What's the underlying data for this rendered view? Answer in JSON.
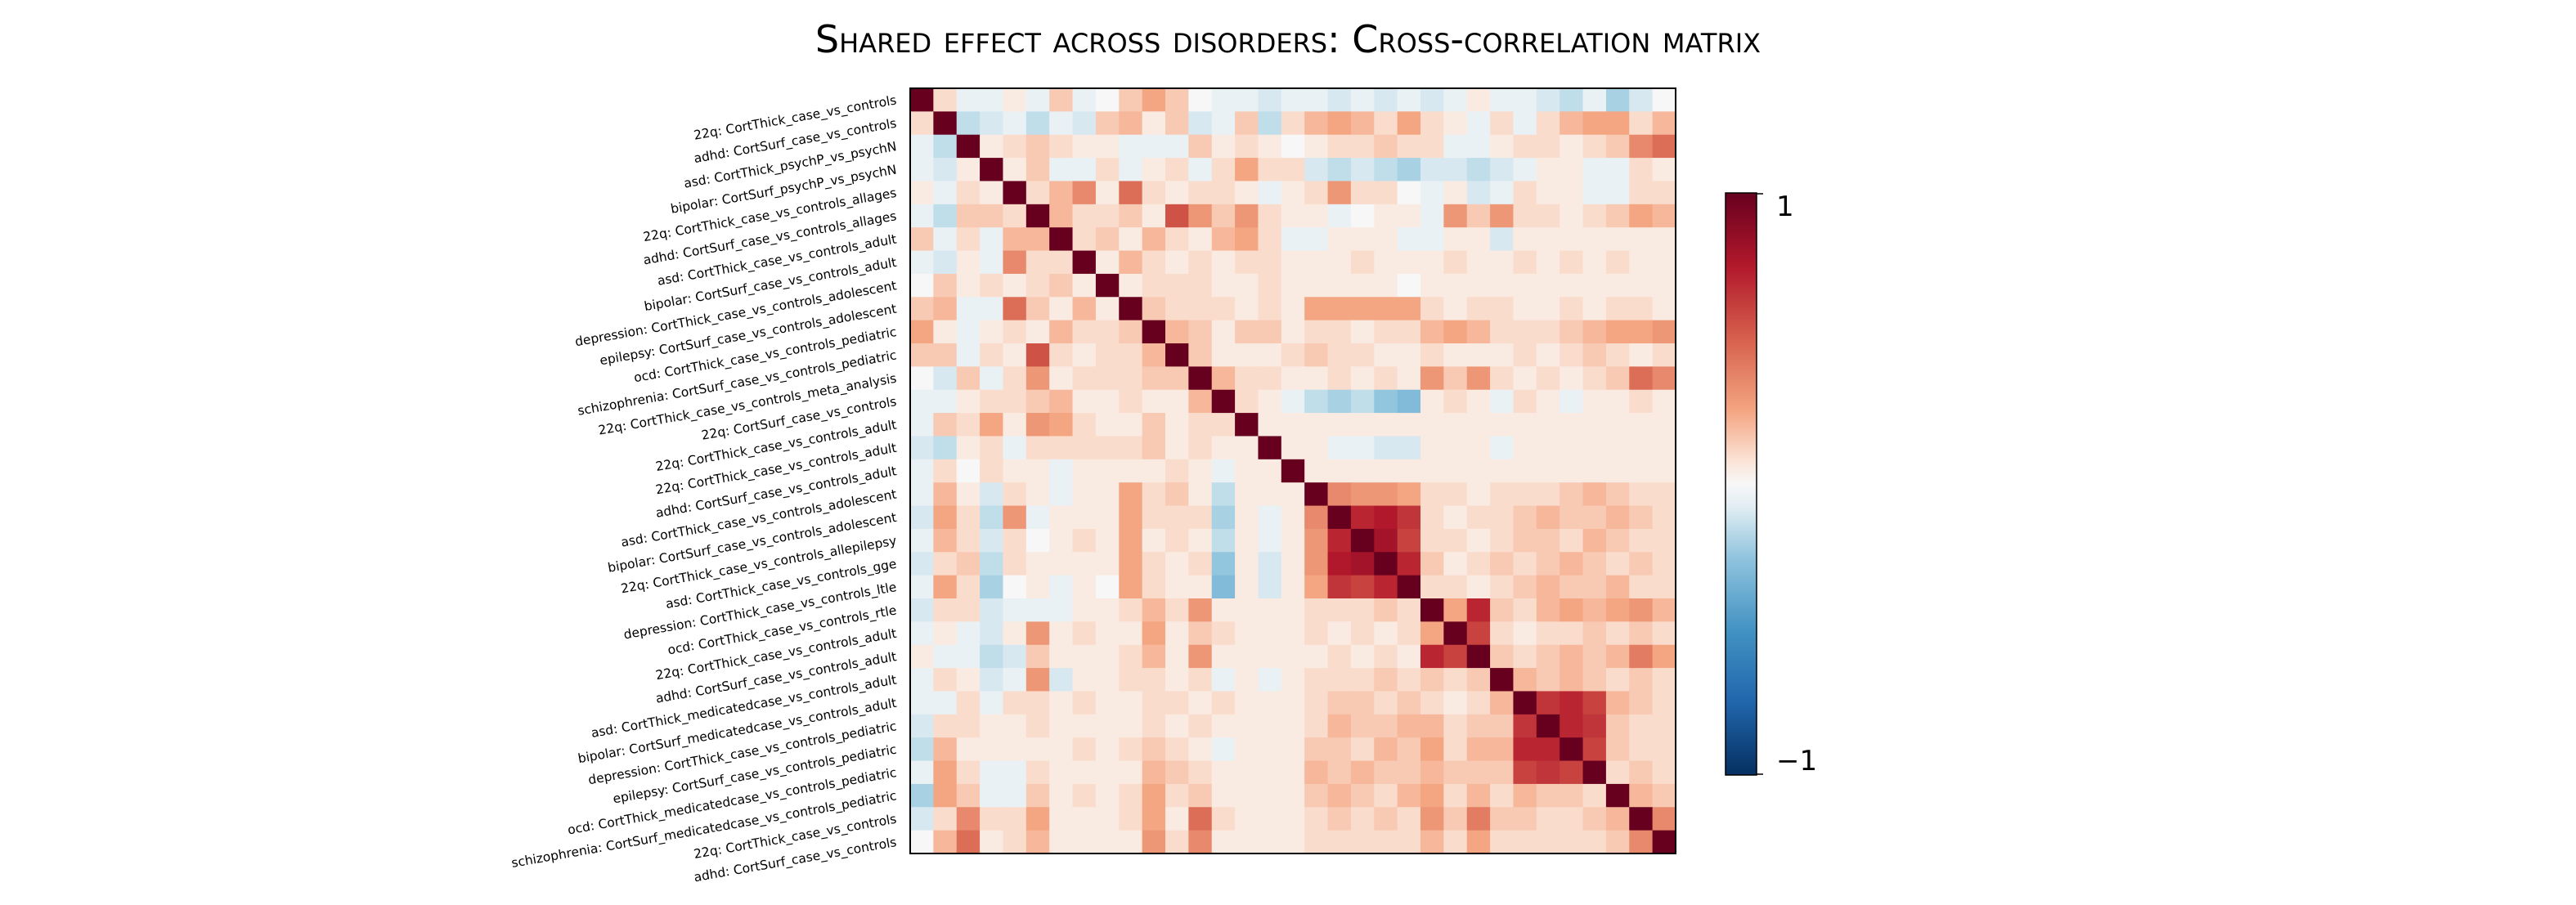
{
  "title": "Shared effect across disorders: Cross-correlation matrix",
  "chart_data": {
    "type": "heatmap",
    "title": "Shared effect across disorders: Cross-correlation matrix",
    "row_labels": [
      "22q: CortThick_case_vs_controls",
      "adhd: CortSurf_case_vs_controls",
      "asd: CortThick_psychP_vs_psychN",
      "bipolar: CortSurf_psychP_vs_psychN",
      "22q: CortThick_case_vs_controls_allages",
      "adhd: CortSurf_case_vs_controls_allages",
      "asd: CortThick_case_vs_controls_adult",
      "bipolar: CortSurf_case_vs_controls_adult",
      "depression: CortThick_case_vs_controls_adolescent",
      "epilepsy: CortSurf_case_vs_controls_adolescent",
      "ocd: CortThick_case_vs_controls_pediatric",
      "schizophrenia: CortSurf_case_vs_controls_pediatric",
      "22q: CortThick_case_vs_controls_meta_analysis",
      "22q: CortSurf_case_vs_controls",
      "22q: CortThick_case_vs_controls_adult",
      "22q: CortThick_case_vs_controls_adult",
      "adhd: CortSurf_case_vs_controls_adult",
      "asd: CortThick_case_vs_controls_adolescent",
      "bipolar: CortSurf_case_vs_controls_adolescent",
      "22q: CortThick_case_vs_controls_allepilepsy",
      "asd: CortThick_case_vs_controls_gge",
      "depression: CortThick_case_vs_controls_ltle",
      "ocd: CortThick_case_vs_controls_rtle",
      "22q: CortThick_case_vs_controls_adult",
      "adhd: CortSurf_case_vs_controls_adult",
      "asd: CortThick_medicatedcase_vs_controls_adult",
      "bipolar: CortSurf_medicatedcase_vs_controls_adult",
      "depression: CortThick_case_vs_controls_pediatric",
      "epilepsy: CortSurf_case_vs_controls_pediatric",
      "ocd: CortThick_medicatedcase_vs_controls_pediatric",
      "schizophrenia: CortSurf_medicatedcase_vs_controls_pediatric",
      "22q: CortThick_case_vs_controls",
      "adhd: CortSurf_case_vs_controls"
    ],
    "value_range": [
      -1,
      1
    ],
    "colormap": "RdBu_r",
    "colorbar": {
      "max_label": "1",
      "min_label": "−1",
      "placement": "right"
    },
    "blocks": [
      {
        "rows": [
          19,
          22
        ],
        "value": 0.75
      },
      {
        "rows": [
          23,
          25
        ],
        "value": 0.7
      },
      {
        "rows": [
          26,
          29
        ],
        "value": 0.65
      }
    ],
    "values": [
      [
        1,
        0.1,
        -0.05,
        -0.05,
        0.05,
        -0.05,
        0.15,
        -0.05,
        0,
        0.15,
        0.25,
        0.15,
        0,
        -0.05,
        -0.05,
        -0.1,
        -0.05,
        -0.05,
        -0.1,
        -0.05,
        -0.1,
        -0.05,
        -0.1,
        -0.05,
        0.05,
        -0.05,
        -0.05,
        -0.1,
        -0.15,
        -0.05,
        -0.2,
        -0.1,
        0
      ],
      [
        0.1,
        1,
        -0.15,
        -0.1,
        -0.05,
        -0.15,
        -0.05,
        -0.1,
        0.15,
        0.2,
        0.05,
        0.15,
        -0.1,
        -0.05,
        0.15,
        -0.15,
        0.1,
        0.2,
        0.25,
        0.2,
        0.1,
        0.25,
        0.1,
        0.05,
        -0.05,
        0.1,
        -0.05,
        0.1,
        0.2,
        0.25,
        0.25,
        0.1,
        0.2
      ],
      [
        -0.05,
        -0.15,
        1,
        0.05,
        0.1,
        0.15,
        0.1,
        0.05,
        0.05,
        -0.05,
        -0.05,
        -0.05,
        0.15,
        0.05,
        0.1,
        0.05,
        0,
        0.05,
        0.1,
        0.1,
        0.15,
        0.1,
        0.1,
        -0.05,
        -0.05,
        0.05,
        0.1,
        0.1,
        0.05,
        0.1,
        0.15,
        0.35,
        0.45
      ],
      [
        -0.05,
        -0.1,
        0.05,
        1,
        0.05,
        0.15,
        -0.05,
        -0.05,
        0.1,
        -0.05,
        0.05,
        0.1,
        -0.05,
        0.1,
        0.25,
        0.1,
        0.1,
        -0.1,
        -0.15,
        -0.1,
        -0.15,
        -0.2,
        -0.1,
        -0.1,
        -0.15,
        -0.1,
        -0.05,
        0.05,
        0.05,
        -0.05,
        -0.05,
        0.1,
        0.05
      ],
      [
        0.05,
        -0.05,
        0.1,
        0.05,
        1,
        0.1,
        0.2,
        0.35,
        0.05,
        0.45,
        0.1,
        0.05,
        0.1,
        0.1,
        0.05,
        -0.05,
        0.05,
        0.1,
        0.3,
        0.1,
        0.1,
        0,
        -0.05,
        0.05,
        -0.1,
        -0.05,
        0.1,
        0.05,
        0.05,
        -0.05,
        -0.05,
        0.1,
        0.1
      ],
      [
        -0.05,
        -0.15,
        0.15,
        0.15,
        0.1,
        1,
        0.2,
        0.1,
        0.1,
        0.15,
        0.05,
        0.55,
        0.3,
        0.15,
        0.3,
        0.1,
        0.05,
        0.05,
        -0.05,
        0,
        0.05,
        0.05,
        -0.05,
        0.3,
        0.15,
        0.3,
        0.1,
        0.1,
        0.05,
        0.1,
        0.15,
        0.25,
        0.2
      ],
      [
        0.15,
        -0.05,
        0.1,
        -0.05,
        0.2,
        0.2,
        1,
        0.1,
        0.15,
        0.05,
        0.2,
        0.1,
        0.05,
        0.2,
        0.25,
        0.1,
        -0.05,
        -0.05,
        0.05,
        0.05,
        0.05,
        -0.05,
        -0.05,
        0.05,
        0.05,
        -0.1,
        0.05,
        0.05,
        0.05,
        0.05,
        0.05,
        0.05,
        0.05
      ],
      [
        -0.05,
        -0.1,
        0.05,
        -0.05,
        0.35,
        0.1,
        0.1,
        1,
        0.05,
        0.2,
        0.1,
        0.05,
        0.1,
        0.05,
        0.1,
        0.1,
        0.05,
        0.05,
        0.05,
        0.1,
        0.05,
        0.05,
        0.05,
        0.1,
        0.05,
        0.05,
        0.1,
        0.05,
        0.1,
        0.05,
        0.1,
        0.05,
        0.05
      ],
      [
        0,
        0.15,
        0.05,
        0.1,
        0.05,
        0.1,
        0.15,
        0.05,
        1,
        0.05,
        0.1,
        0.1,
        0.1,
        0.05,
        0.05,
        0.1,
        0.05,
        0.05,
        0.05,
        0.05,
        0.05,
        0,
        0.05,
        0.05,
        0.05,
        0.05,
        0.05,
        0.05,
        0.05,
        0.05,
        0.05,
        0.05,
        0.05
      ],
      [
        0.15,
        0.2,
        -0.05,
        -0.05,
        0.45,
        0.15,
        0.05,
        0.2,
        0.05,
        1,
        0.15,
        0.1,
        0.1,
        0.1,
        0.05,
        0.1,
        0.05,
        0.25,
        0.25,
        0.25,
        0.25,
        0.25,
        0.1,
        0.05,
        0.1,
        0.1,
        0.05,
        0.05,
        0.1,
        0.05,
        0.1,
        0.1,
        0.05
      ],
      [
        0.25,
        0.05,
        -0.05,
        0.05,
        0.1,
        0.05,
        0.2,
        0.1,
        0.1,
        0.15,
        1,
        0.2,
        0.15,
        0.05,
        0.15,
        0.15,
        0.05,
        0.1,
        0.1,
        0.05,
        0.1,
        0.1,
        0.2,
        0.25,
        0.2,
        0.1,
        0.1,
        0.1,
        0.15,
        0.2,
        0.25,
        0.25,
        0.3
      ],
      [
        0.15,
        0.15,
        -0.05,
        0.1,
        0.05,
        0.55,
        0.1,
        0.05,
        0.1,
        0.1,
        0.2,
        1,
        0.15,
        0.05,
        0.05,
        0.05,
        0.1,
        0.15,
        0.1,
        0.1,
        0.05,
        0.05,
        0.1,
        0.05,
        0.05,
        0.05,
        0.1,
        0.05,
        0.1,
        0.15,
        0.1,
        0.05,
        0.1
      ],
      [
        0,
        -0.1,
        0.15,
        -0.05,
        0.1,
        0.3,
        0.05,
        0.1,
        0.1,
        0.1,
        0.15,
        0.15,
        1,
        0.2,
        0.1,
        0.1,
        0.05,
        0.05,
        0.1,
        0.05,
        0.1,
        0.05,
        0.3,
        0.15,
        0.3,
        0.1,
        0.05,
        0.1,
        0.05,
        0.1,
        0.15,
        0.45,
        0.35
      ],
      [
        -0.05,
        -0.05,
        0.05,
        0.1,
        0.1,
        0.15,
        0.2,
        0.05,
        0.05,
        0.1,
        0.05,
        0.05,
        0.2,
        1,
        0.1,
        0.05,
        -0.05,
        -0.15,
        -0.2,
        -0.15,
        -0.25,
        -0.3,
        0.05,
        0.1,
        0.05,
        -0.05,
        0.1,
        0.05,
        -0.05,
        0.05,
        0.05,
        0.1,
        0.05
      ],
      [
        -0.05,
        0.15,
        0.1,
        0.25,
        0.05,
        0.3,
        0.25,
        0.1,
        0.05,
        0.05,
        0.15,
        0.05,
        0.1,
        0.1,
        1,
        0.05,
        0.05,
        0.05,
        0.05,
        0.05,
        0.05,
        0.05,
        0.05,
        0.05,
        0.05,
        0.05,
        0.05,
        0.05,
        0.05,
        0.05,
        0.05,
        0.05,
        0.05
      ],
      [
        -0.1,
        -0.15,
        0.05,
        0.1,
        -0.05,
        0.1,
        0.1,
        0.1,
        0.1,
        0.1,
        0.15,
        0.05,
        0.1,
        0.05,
        0.05,
        1,
        0.05,
        0.05,
        -0.05,
        -0.05,
        -0.1,
        -0.1,
        0.05,
        0.05,
        0.05,
        -0.05,
        0.05,
        0.05,
        0.05,
        0.05,
        0.05,
        0.05,
        0.05
      ],
      [
        -0.05,
        0.1,
        0,
        0.1,
        0.05,
        0.05,
        -0.05,
        0.05,
        0.05,
        0.05,
        0.05,
        0.1,
        0.05,
        -0.05,
        0.05,
        0.05,
        1,
        0.05,
        0.05,
        0.05,
        0.05,
        0.05,
        0.05,
        0.05,
        0.05,
        0.05,
        0.05,
        0.05,
        0.05,
        0.05,
        0.05,
        0.05,
        0.05
      ],
      [
        -0.05,
        0.2,
        0.05,
        -0.1,
        0.1,
        0.05,
        -0.05,
        0.05,
        0.05,
        0.25,
        0.1,
        0.15,
        0.05,
        -0.15,
        0.05,
        0.05,
        0.05,
        1,
        0.35,
        0.3,
        0.3,
        0.25,
        0.1,
        0.1,
        0.05,
        0.1,
        0.1,
        0.1,
        0.15,
        0.2,
        0.15,
        0.1,
        0.1
      ],
      [
        -0.1,
        0.25,
        0.1,
        -0.15,
        0.3,
        -0.05,
        0.05,
        0.05,
        0.05,
        0.25,
        0.1,
        0.1,
        0.1,
        -0.2,
        0.05,
        -0.05,
        0.05,
        0.35,
        1,
        0.7,
        0.75,
        0.65,
        0.1,
        0.05,
        0.1,
        0.1,
        0.15,
        0.2,
        0.15,
        0.15,
        0.2,
        0.15,
        0.1
      ],
      [
        -0.05,
        0.2,
        0.1,
        -0.1,
        0.1,
        0,
        0.05,
        0.1,
        0.05,
        0.25,
        0.05,
        0.1,
        0.05,
        -0.15,
        0.05,
        -0.05,
        0.05,
        0.3,
        0.7,
        1,
        0.8,
        0.6,
        0.1,
        0.1,
        0.05,
        0.1,
        0.15,
        0.15,
        0.1,
        0.2,
        0.15,
        0.1,
        0.1
      ],
      [
        -0.1,
        0.1,
        0.15,
        -0.15,
        0.1,
        0.05,
        0.05,
        0.05,
        0.05,
        0.25,
        0.1,
        0.05,
        0.1,
        -0.25,
        0.05,
        -0.1,
        0.05,
        0.3,
        0.75,
        0.8,
        1,
        0.7,
        0.15,
        0.05,
        0.1,
        0.15,
        0.1,
        0.15,
        0.2,
        0.15,
        0.1,
        0.15,
        0.1
      ],
      [
        -0.05,
        0.25,
        0.1,
        -0.2,
        0,
        0.05,
        -0.05,
        0.05,
        0,
        0.25,
        0.1,
        0.05,
        0.05,
        -0.3,
        0.05,
        -0.1,
        0.05,
        0.25,
        0.65,
        0.6,
        0.7,
        1,
        0.1,
        0.1,
        0.05,
        0.1,
        0.15,
        0.2,
        0.15,
        0.15,
        0.2,
        0.1,
        0.1
      ],
      [
        -0.1,
        0.1,
        0.1,
        -0.1,
        -0.05,
        -0.05,
        -0.05,
        0.05,
        0.05,
        0.1,
        0.2,
        0.1,
        0.3,
        0.05,
        0.05,
        0.05,
        0.05,
        0.1,
        0.1,
        0.1,
        0.15,
        0.1,
        1,
        0.25,
        0.7,
        0.15,
        0.1,
        0.2,
        0.25,
        0.2,
        0.25,
        0.3,
        0.2
      ],
      [
        -0.05,
        0.05,
        -0.05,
        -0.1,
        0.05,
        0.3,
        0.05,
        0.1,
        0.05,
        0.05,
        0.25,
        0.05,
        0.15,
        0.1,
        0.05,
        0.05,
        0.05,
        0.1,
        0.05,
        0.1,
        0.05,
        0.1,
        0.25,
        1,
        0.6,
        0.1,
        0.05,
        0.1,
        0.1,
        0.15,
        0.1,
        0.15,
        0.1
      ],
      [
        0.05,
        -0.05,
        -0.05,
        -0.15,
        -0.1,
        0.15,
        0.05,
        0.05,
        0.05,
        0.1,
        0.2,
        0.05,
        0.3,
        0.05,
        0.05,
        0.05,
        0.05,
        0.05,
        0.1,
        0.05,
        0.1,
        0.05,
        0.7,
        0.6,
        1,
        0.15,
        0.1,
        0.15,
        0.2,
        0.15,
        0.2,
        0.4,
        0.25
      ],
      [
        -0.05,
        0.1,
        0.05,
        -0.1,
        -0.05,
        0.3,
        -0.1,
        0.05,
        0.05,
        0.1,
        0.1,
        0.05,
        0.1,
        -0.05,
        0.05,
        -0.05,
        0.05,
        0.1,
        0.1,
        0.1,
        0.15,
        0.1,
        0.15,
        0.1,
        0.15,
        1,
        0.2,
        0.15,
        0.2,
        0.15,
        0.1,
        0.15,
        0.1
      ],
      [
        -0.05,
        -0.05,
        0.1,
        -0.05,
        0.1,
        0.1,
        0.05,
        0.1,
        0.05,
        0.05,
        0.1,
        0.1,
        0.05,
        0.1,
        0.05,
        0.05,
        0.05,
        0.1,
        0.15,
        0.15,
        0.1,
        0.15,
        0.1,
        0.05,
        0.1,
        0.2,
        1,
        0.65,
        0.7,
        0.6,
        0.2,
        0.15,
        0.1
      ],
      [
        -0.1,
        0.1,
        0.1,
        0.05,
        0.05,
        0.1,
        0.05,
        0.05,
        0.05,
        0.05,
        0.1,
        0.05,
        0.1,
        0.05,
        0.05,
        0.05,
        0.05,
        0.1,
        0.2,
        0.15,
        0.15,
        0.2,
        0.2,
        0.1,
        0.15,
        0.15,
        0.65,
        1,
        0.7,
        0.65,
        0.15,
        0.1,
        0.1
      ],
      [
        -0.15,
        0.2,
        0.05,
        0.05,
        0.05,
        0.05,
        0.05,
        0.1,
        0.05,
        0.1,
        0.15,
        0.1,
        0.05,
        -0.05,
        0.05,
        0.05,
        0.05,
        0.15,
        0.15,
        0.1,
        0.2,
        0.15,
        0.25,
        0.1,
        0.2,
        0.2,
        0.7,
        0.7,
        1,
        0.6,
        0.15,
        0.1,
        0.1
      ],
      [
        -0.05,
        0.25,
        0.1,
        -0.05,
        -0.05,
        0.1,
        0.05,
        0.05,
        0.05,
        0.05,
        0.2,
        0.15,
        0.1,
        0.05,
        0.05,
        0.05,
        0.05,
        0.2,
        0.15,
        0.2,
        0.15,
        0.15,
        0.2,
        0.15,
        0.15,
        0.15,
        0.6,
        0.65,
        0.6,
        1,
        0.1,
        0.15,
        0.1
      ],
      [
        -0.2,
        0.25,
        0.15,
        -0.05,
        -0.05,
        0.15,
        0.05,
        0.1,
        0.05,
        0.1,
        0.25,
        0.1,
        0.15,
        0.05,
        0.05,
        0.05,
        0.05,
        0.15,
        0.2,
        0.15,
        0.1,
        0.2,
        0.25,
        0.1,
        0.2,
        0.1,
        0.2,
        0.15,
        0.15,
        0.1,
        1,
        0.2,
        0.15
      ],
      [
        -0.1,
        0.1,
        0.35,
        0.1,
        0.1,
        0.25,
        0.05,
        0.05,
        0.05,
        0.1,
        0.25,
        0.05,
        0.45,
        0.1,
        0.05,
        0.05,
        0.05,
        0.1,
        0.15,
        0.1,
        0.15,
        0.1,
        0.3,
        0.15,
        0.4,
        0.15,
        0.15,
        0.1,
        0.1,
        0.15,
        0.2,
        1,
        0.35
      ],
      [
        0,
        0.2,
        0.45,
        0.05,
        0.1,
        0.2,
        0.05,
        0.05,
        0.05,
        0.05,
        0.3,
        0.1,
        0.35,
        0.05,
        0.05,
        0.05,
        0.05,
        0.1,
        0.1,
        0.1,
        0.1,
        0.1,
        0.2,
        0.1,
        0.25,
        0.1,
        0.1,
        0.1,
        0.1,
        0.1,
        0.15,
        0.35,
        1
      ]
    ]
  }
}
